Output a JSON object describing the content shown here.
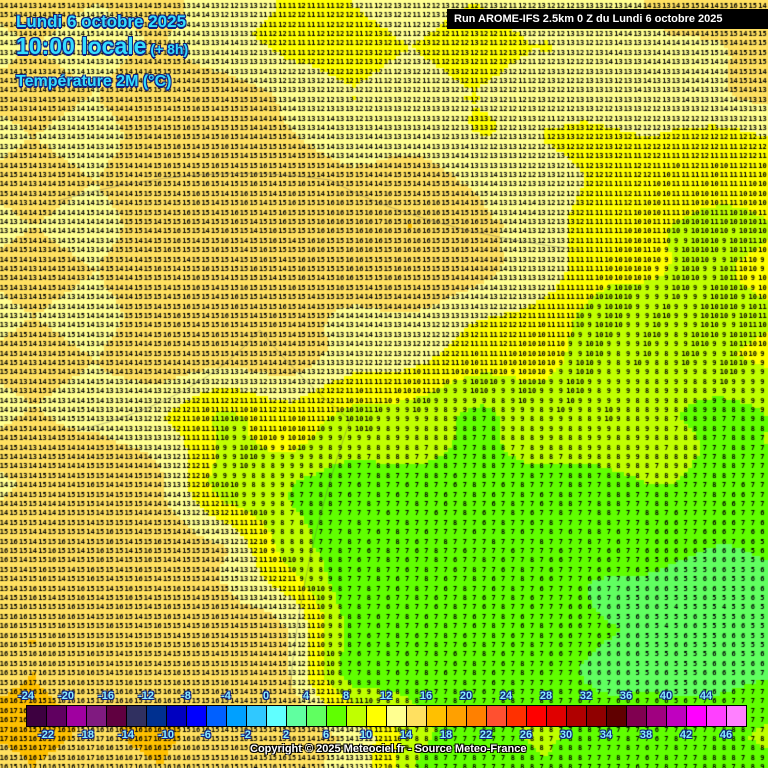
{
  "header": {
    "date": "Lundi 6 octobre 2025",
    "time": "10:00 locale",
    "lead": "(+ 8h)",
    "parameter": "Température 2M (°C)",
    "run": "Run AROME-IFS 2.5km 0 Z du Lundi 6 octobre 2025"
  },
  "temperature_field_c": [
    [
      14,
      14,
      14,
      13,
      11,
      12,
      12,
      12,
      12,
      13,
      14,
      15
    ],
    [
      14,
      14,
      15,
      15,
      13,
      12,
      12,
      12,
      12,
      13,
      13,
      14
    ],
    [
      14,
      14,
      15,
      15,
      15,
      14,
      14,
      13,
      12,
      12,
      11,
      11
    ],
    [
      14,
      14,
      15,
      15,
      15,
      16,
      16,
      15,
      13,
      11,
      10,
      10
    ],
    [
      14,
      14,
      15,
      15,
      15,
      15,
      15,
      14,
      12,
      10,
      9,
      10
    ],
    [
      14,
      14,
      15,
      15,
      15,
      13,
      12,
      11,
      10,
      9,
      9,
      10
    ],
    [
      14,
      14,
      12,
      10,
      11,
      10,
      9,
      8,
      9,
      9,
      8,
      8
    ],
    [
      14,
      15,
      14,
      9,
      8,
      7,
      7,
      7,
      7,
      8,
      8,
      7
    ],
    [
      15,
      15,
      15,
      14,
      8,
      7,
      7,
      7,
      7,
      7,
      6,
      6
    ],
    [
      15,
      15,
      15,
      15,
      13,
      7,
      7,
      7,
      7,
      6,
      5,
      5
    ],
    [
      16,
      15,
      15,
      15,
      14,
      7,
      7,
      7,
      7,
      6,
      5,
      6
    ],
    [
      16,
      16,
      16,
      15,
      15,
      14,
      8,
      7,
      8,
      7,
      7,
      8
    ]
  ],
  "colorbar": {
    "colors": [
      "#3d0040",
      "#600060",
      "#a000a0",
      "#801a80",
      "#600040",
      "#303060",
      "#003090",
      "#0000c0",
      "#0000ff",
      "#0060ff",
      "#00a0ff",
      "#30c8ff",
      "#60ffff",
      "#60ffa0",
      "#60ff60",
      "#60ff00",
      "#c0ff00",
      "#ffff00",
      "#ffff90",
      "#ffe060",
      "#ffc000",
      "#ffa000",
      "#ff8000",
      "#ff5030",
      "#ff3000",
      "#ff0000",
      "#e00000",
      "#b00000",
      "#900000",
      "#600000",
      "#800050",
      "#a00080",
      "#c000c0",
      "#ff00ff",
      "#ff40ff",
      "#ff80ff"
    ],
    "min": -24,
    "step": 2,
    "top_labels": [
      "-24",
      "-20",
      "-16",
      "-12",
      "-8",
      "-4",
      "0",
      "4",
      "8",
      "12",
      "16",
      "20",
      "24",
      "28",
      "32",
      "36",
      "40",
      "44"
    ],
    "bottom_labels": [
      "-22",
      "-18",
      "-14",
      "-10",
      "-6",
      "-2",
      "2",
      "6",
      "10",
      "14",
      "18",
      "22",
      "26",
      "30",
      "34",
      "38",
      "42",
      "46"
    ]
  },
  "footer": {
    "copyright": "Copyright © 2025 Meteociel.fr - Source Meteo-France"
  }
}
